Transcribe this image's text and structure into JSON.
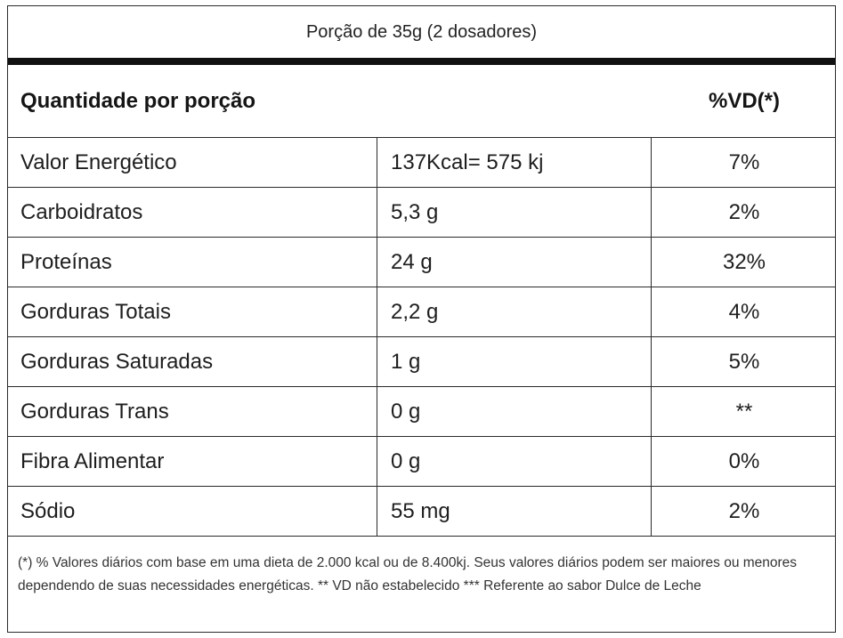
{
  "serving": "Porção de 35g (2 dosadores)",
  "header": {
    "left": "Quantidade por porção",
    "right": "%VD(*)"
  },
  "rows": [
    {
      "name": "Valor Energético",
      "qty": "137Kcal= 575 kj",
      "vd": "7%"
    },
    {
      "name": "Carboidratos",
      "qty": "5,3 g",
      "vd": "2%"
    },
    {
      "name": "Proteínas",
      "qty": "24 g",
      "vd": "32%"
    },
    {
      "name": "Gorduras Totais",
      "qty": "2,2 g",
      "vd": "4%"
    },
    {
      "name": "Gorduras Saturadas",
      "qty": "1 g",
      "vd": "5%"
    },
    {
      "name": "Gorduras Trans",
      "qty": "0 g",
      "vd": "**"
    },
    {
      "name": "Fibra Alimentar",
      "qty": "0 g",
      "vd": "0%"
    },
    {
      "name": "Sódio",
      "qty": "55 mg",
      "vd": "2%"
    }
  ],
  "footnote": "(*) % Valores diários com base em uma dieta de 2.000 kcal ou de 8.400kj. Seus valores diários podem ser maiores ou menores dependendo de suas necessidades energéticas. ** VD não estabelecido *** Referente ao sabor Dulce de Leche"
}
